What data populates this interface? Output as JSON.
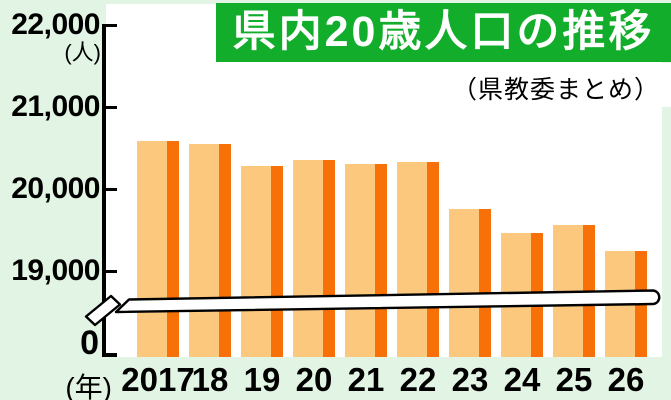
{
  "chart_data": {
    "type": "bar",
    "title": "県内20歳人口の推移",
    "source": "（県教委まとめ）",
    "y_unit_label": "(人)",
    "x_unit_label": "(年)",
    "zero_label": "0",
    "categories": [
      "2017",
      "18",
      "19",
      "20",
      "21",
      "22",
      "23",
      "24",
      "25",
      "26"
    ],
    "values": [
      20590,
      20550,
      20280,
      20350,
      20300,
      20330,
      19760,
      19460,
      19560,
      19250
    ],
    "y_ticks": [
      {
        "value": 22000,
        "label": "22,000"
      },
      {
        "value": 21000,
        "label": "21,000"
      },
      {
        "value": 20000,
        "label": "20,000"
      },
      {
        "value": 19000,
        "label": "19,000"
      }
    ],
    "ylim_display": [
      19000,
      22000
    ],
    "axis_break": true,
    "grid": false,
    "legend": "none",
    "colors": {
      "background_green": "#E2F4E3",
      "banner_green": "#12AD2A",
      "plot_background": "#FFFFFF",
      "bar_body": "#FBC87E",
      "bar_stripe": "#F87108",
      "text": "#000000",
      "title_text": "#FFFFFF"
    }
  }
}
